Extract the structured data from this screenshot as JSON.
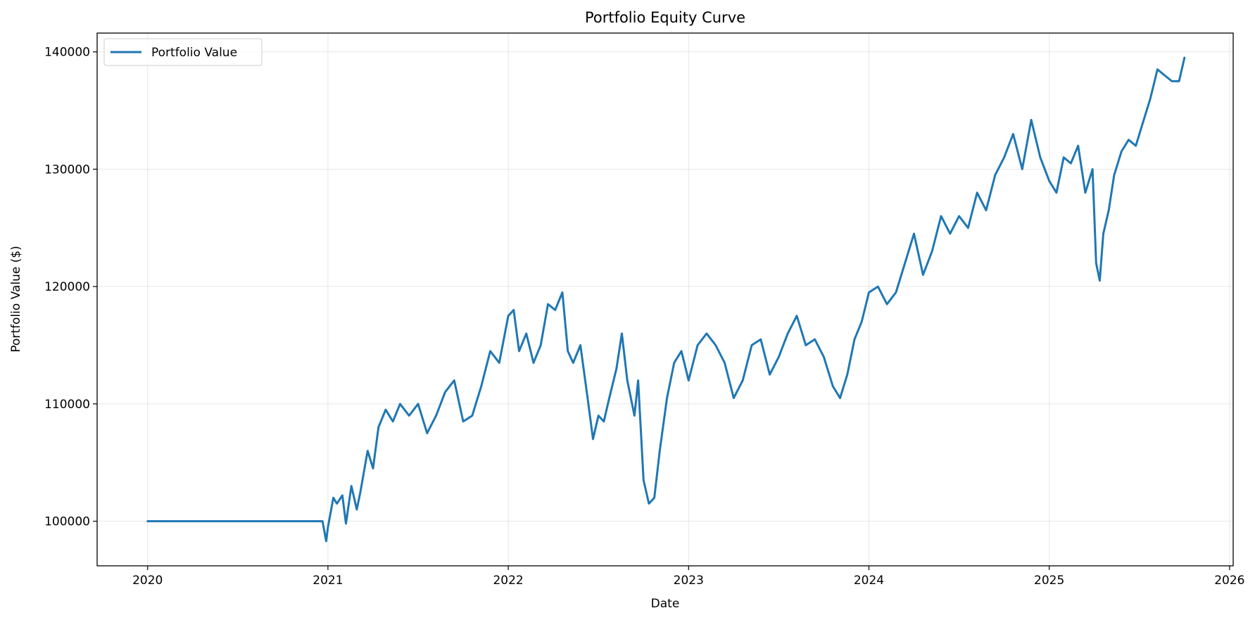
{
  "chart_data": {
    "type": "line",
    "title": "Portfolio Equity Curve",
    "xlabel": "Date",
    "ylabel": "Portfolio Value ($)",
    "xlim": [
      2019.72,
      2026.02
    ],
    "ylim": [
      96200,
      141600
    ],
    "x_ticks": [
      2020,
      2021,
      2022,
      2023,
      2024,
      2025,
      2026
    ],
    "x_tick_labels": [
      "2020",
      "2021",
      "2022",
      "2023",
      "2024",
      "2025",
      "2026"
    ],
    "y_ticks": [
      100000,
      110000,
      120000,
      130000,
      140000
    ],
    "y_tick_labels": [
      "100000",
      "110000",
      "120000",
      "130000",
      "140000"
    ],
    "grid": true,
    "legend": {
      "position": "top-left",
      "entries": [
        "Portfolio Value"
      ]
    },
    "series": [
      {
        "name": "Portfolio Value",
        "color": "#1f77b4",
        "x": [
          2020.0,
          2020.5,
          2020.97,
          2020.99,
          2021.0,
          2021.03,
          2021.05,
          2021.08,
          2021.1,
          2021.13,
          2021.16,
          2021.18,
          2021.22,
          2021.25,
          2021.28,
          2021.32,
          2021.36,
          2021.4,
          2021.45,
          2021.5,
          2021.55,
          2021.6,
          2021.65,
          2021.7,
          2021.75,
          2021.8,
          2021.85,
          2021.9,
          2021.95,
          2022.0,
          2022.03,
          2022.06,
          2022.1,
          2022.14,
          2022.18,
          2022.22,
          2022.26,
          2022.3,
          2022.33,
          2022.36,
          2022.4,
          2022.44,
          2022.47,
          2022.5,
          2022.53,
          2022.56,
          2022.6,
          2022.63,
          2022.66,
          2022.7,
          2022.72,
          2022.75,
          2022.78,
          2022.81,
          2022.84,
          2022.88,
          2022.92,
          2022.96,
          2023.0,
          2023.05,
          2023.1,
          2023.15,
          2023.2,
          2023.25,
          2023.3,
          2023.35,
          2023.4,
          2023.45,
          2023.5,
          2023.55,
          2023.6,
          2023.65,
          2023.7,
          2023.75,
          2023.8,
          2023.84,
          2023.88,
          2023.92,
          2023.96,
          2024.0,
          2024.05,
          2024.1,
          2024.15,
          2024.2,
          2024.25,
          2024.3,
          2024.35,
          2024.4,
          2024.45,
          2024.5,
          2024.55,
          2024.6,
          2024.65,
          2024.7,
          2024.75,
          2024.8,
          2024.85,
          2024.9,
          2024.95,
          2025.0,
          2025.04,
          2025.08,
          2025.12,
          2025.16,
          2025.2,
          2025.24,
          2025.26,
          2025.28,
          2025.3,
          2025.33,
          2025.36,
          2025.4,
          2025.44,
          2025.48,
          2025.52,
          2025.56,
          2025.6,
          2025.64,
          2025.68,
          2025.72,
          2025.75
        ],
        "values": [
          100000,
          100000,
          100000,
          98300,
          99500,
          102000,
          101500,
          102200,
          99800,
          103000,
          101000,
          102500,
          106000,
          104500,
          108000,
          109500,
          108500,
          110000,
          109000,
          110000,
          107500,
          109000,
          111000,
          112000,
          108500,
          109000,
          111500,
          114500,
          113500,
          117500,
          118000,
          114500,
          116000,
          113500,
          115000,
          118500,
          118000,
          119500,
          114500,
          113500,
          115000,
          110500,
          107000,
          109000,
          108500,
          110500,
          113000,
          116000,
          112000,
          109000,
          112000,
          103500,
          101500,
          102000,
          106000,
          110500,
          113500,
          114500,
          112000,
          115000,
          116000,
          115000,
          113500,
          110500,
          112000,
          115000,
          115500,
          112500,
          114000,
          116000,
          117500,
          115000,
          115500,
          114000,
          111500,
          110500,
          112500,
          115500,
          117000,
          119500,
          120000,
          118500,
          119500,
          122000,
          124500,
          121000,
          123000,
          126000,
          124500,
          126000,
          125000,
          128000,
          126500,
          129500,
          131000,
          133000,
          130000,
          134200,
          131000,
          129000,
          128000,
          131000,
          130500,
          132000,
          128000,
          130000,
          122000,
          120500,
          124500,
          126500,
          129500,
          131500,
          132500,
          132000,
          134000,
          136000,
          138500,
          138000,
          137500,
          137500,
          139500
        ]
      }
    ]
  }
}
